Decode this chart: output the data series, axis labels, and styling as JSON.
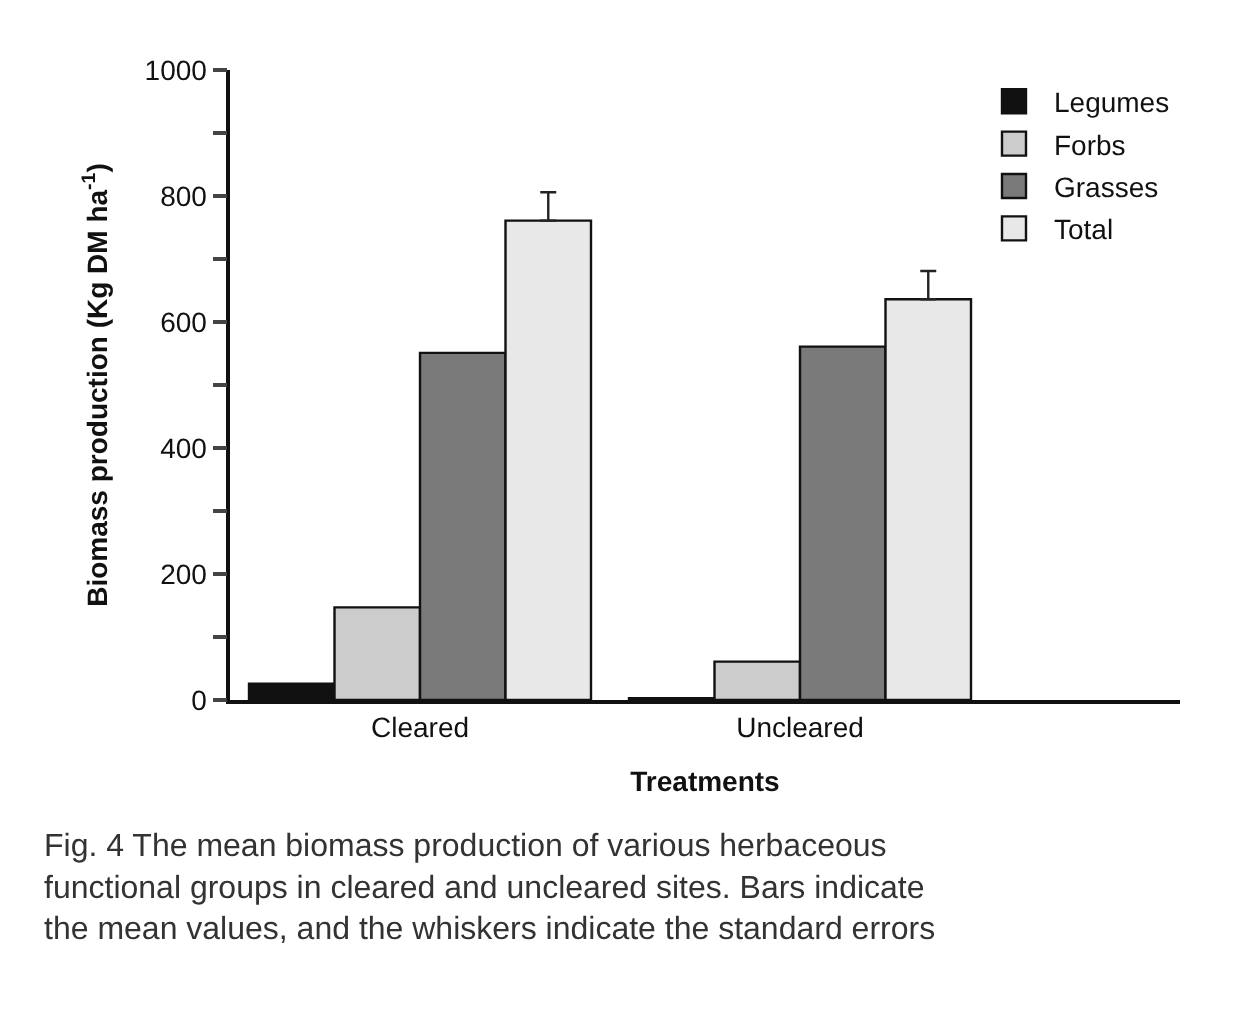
{
  "chart_data": {
    "type": "bar",
    "xlabel": "Treatments",
    "ylabel": "Biomass production (Kg DM ha$^{-1}$)",
    "categories": [
      "Cleared",
      "Uncleared"
    ],
    "series": [
      {
        "name": "Legumes",
        "color": "#111111",
        "values": [
          26,
          3
        ]
      },
      {
        "name": "Forbs",
        "color": "#cccccc",
        "values": [
          147,
          61
        ]
      },
      {
        "name": "Grasses",
        "color": "#7a7a7a",
        "values": [
          551,
          561
        ]
      },
      {
        "name": "Total",
        "color": "#e8e8e8",
        "values": [
          761,
          636
        ],
        "errors": [
          [
            761,
            806
          ],
          [
            636,
            681
          ]
        ]
      }
    ],
    "ylim": [
      0,
      1000
    ],
    "yticks": [
      0,
      {
        "value": 100,
        "label": null
      },
      200,
      {
        "value": 300,
        "label": null
      },
      400,
      {
        "value": 500,
        "label": null
      },
      600,
      {
        "value": 700,
        "label": null
      },
      800,
      {
        "value": 900,
        "label": null
      },
      1000
    ],
    "legend": "top right",
    "annotations": [
      "Fig. 4 The mean biomass production of various herbaceous functional groups in cleared and uncleared sites. Bars indicate the mean values, and the whiskers indicate the standard errors"
    ]
  }
}
